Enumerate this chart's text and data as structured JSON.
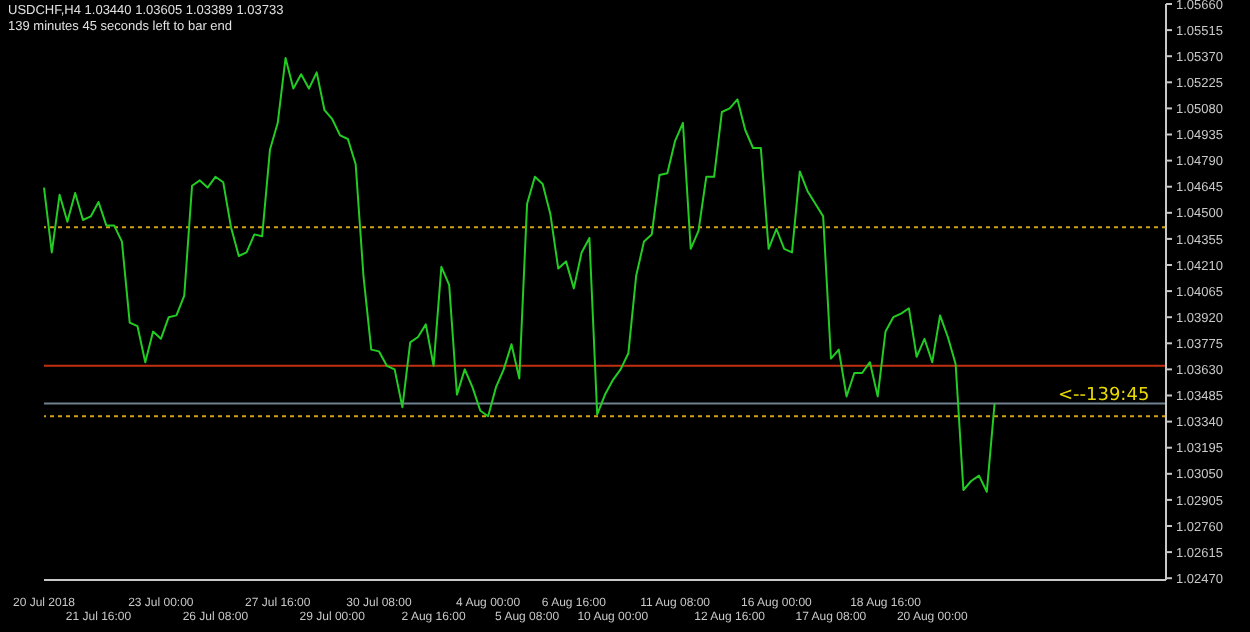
{
  "chart_data": {
    "type": "line",
    "title": "USDCHF,H4 1.03440 1.03605 1.03389 1.03733",
    "subtitle": "139 minutes 45 seconds left to bar end",
    "categories": [
      "20 Jul 2018",
      null,
      null,
      null,
      null,
      null,
      null,
      "21 Jul 16:00",
      null,
      null,
      null,
      null,
      null,
      null,
      null,
      "23 Jul 00:00",
      null,
      null,
      null,
      null,
      null,
      null,
      "26 Jul 08:00",
      null,
      null,
      null,
      null,
      null,
      null,
      null,
      "27 Jul 16:00",
      null,
      null,
      null,
      null,
      null,
      null,
      "29 Jul 00:00",
      null,
      null,
      null,
      null,
      null,
      "30 Jul 08:00",
      null,
      null,
      null,
      null,
      null,
      null,
      "2 Aug 16:00",
      null,
      null,
      null,
      null,
      null,
      null,
      "4 Aug 00:00",
      null,
      null,
      null,
      null,
      "5 Aug 08:00",
      null,
      null,
      null,
      null,
      null,
      "6 Aug 16:00",
      null,
      null,
      null,
      null,
      "10 Aug 00:00",
      null,
      null,
      null,
      null,
      null,
      null,
      null,
      "11 Aug 08:00",
      null,
      null,
      null,
      null,
      null,
      null,
      "12 Aug 16:00",
      null,
      null,
      null,
      null,
      null,
      "16 Aug 00:00",
      null,
      null,
      null,
      null,
      null,
      null,
      "17 Aug 08:00",
      null,
      null,
      null,
      null,
      null,
      null,
      "18 Aug 16:00",
      null,
      null,
      null,
      null,
      null,
      "20 Aug 00:00",
      null,
      null,
      null,
      null,
      null,
      null,
      null,
      null,
      null,
      null,
      null,
      null,
      null,
      null,
      null,
      null,
      null,
      null,
      null,
      null,
      null,
      null,
      null,
      null,
      null,
      null,
      null,
      null,
      null,
      null
    ],
    "series": [
      {
        "color": "#22cc22",
        "values": [
          1.0464,
          1.0428,
          1.046,
          1.0445,
          1.0461,
          1.0446,
          1.0448,
          1.0456,
          1.0443,
          1.0443,
          1.0434,
          1.0389,
          1.0387,
          1.0367,
          1.0384,
          1.038,
          1.0392,
          1.0393,
          1.0404,
          1.0465,
          1.0468,
          1.0464,
          1.047,
          1.0467,
          1.0442,
          1.0426,
          1.0428,
          1.0438,
          1.0437,
          1.0485,
          1.05,
          1.0536,
          1.0519,
          1.0527,
          1.0519,
          1.0528,
          1.0507,
          1.0502,
          1.0493,
          1.0491,
          1.0477,
          1.0415,
          1.0374,
          1.0373,
          1.0365,
          1.0363,
          1.0342,
          1.0378,
          1.0381,
          1.0388,
          1.0365,
          1.042,
          1.041,
          1.0349,
          1.0363,
          1.0353,
          1.034,
          1.0337,
          1.0353,
          1.0363,
          1.0377,
          1.0358,
          1.0455,
          1.047,
          1.0466,
          1.0449,
          1.0419,
          1.0423,
          1.0408,
          1.0428,
          1.0436,
          1.0338,
          1.0349,
          1.0357,
          1.0363,
          1.0372,
          1.0415,
          1.0434,
          1.0438,
          1.0471,
          1.0472,
          1.049,
          1.05,
          1.043,
          1.044,
          1.047,
          1.047,
          1.0506,
          1.0508,
          1.0513,
          1.0496,
          1.0486,
          1.0486,
          1.043,
          1.0441,
          1.043,
          1.0428,
          1.0473,
          1.0462,
          1.0455,
          1.0448,
          1.0369,
          1.0374,
          1.0348,
          1.0361,
          1.0361,
          1.0367,
          1.0348,
          1.0384,
          1.0392,
          1.0394,
          1.0397,
          1.037,
          1.038,
          1.0367,
          1.0393,
          1.0381,
          1.0366,
          1.0296,
          1.0301,
          1.0304,
          1.0295,
          1.0344,
          null,
          null,
          null,
          null,
          null,
          null,
          null,
          null,
          null,
          null,
          null,
          null,
          null,
          null,
          null,
          null,
          null,
          null,
          null,
          null,
          null,
          null
        ]
      }
    ],
    "ylim": [
      1.0246,
      1.0566
    ],
    "yticks": [
      {
        "value": 1.0247,
        "label": "1.02470"
      },
      1.02615,
      {
        "value": 1.0276,
        "label": "1.02760"
      },
      1.02905,
      {
        "value": 1.0305,
        "label": "1.03050"
      },
      1.03195,
      {
        "value": 1.0334,
        "label": "1.03340"
      },
      1.03485,
      {
        "value": 1.0363,
        "label": "1.03630"
      },
      1.03775,
      {
        "value": 1.0392,
        "label": "1.03920"
      },
      1.04065,
      {
        "value": 1.0421,
        "label": "1.04210"
      },
      1.04355,
      {
        "value": 1.045,
        "label": "1.04500"
      },
      1.04645,
      {
        "value": 1.0479,
        "label": "1.04790"
      },
      1.04935,
      {
        "value": 1.0508,
        "label": "1.05080"
      },
      1.05225,
      {
        "value": 1.0537,
        "label": "1.05370"
      },
      1.05515,
      {
        "value": 1.0566,
        "label": "1.05660"
      }
    ],
    "ref_lines": [
      {
        "axis": "y",
        "value": 1.0442,
        "color": "#d4a017",
        "line_style": "dotted"
      },
      {
        "axis": "y",
        "value": 1.0365,
        "color": "#c03010",
        "line_style": "solid"
      },
      {
        "axis": "y",
        "value": 1.0344,
        "color": "#708090",
        "line_style": "solid"
      },
      {
        "axis": "y",
        "value": 1.0337,
        "color": "#d4a017",
        "line_style": "dotted"
      }
    ],
    "annotations": [
      {
        "text": "<--139:45",
        "y": 1.0344
      }
    ],
    "grid": false,
    "legend": false,
    "marker": "none",
    "line_style": "solid"
  }
}
